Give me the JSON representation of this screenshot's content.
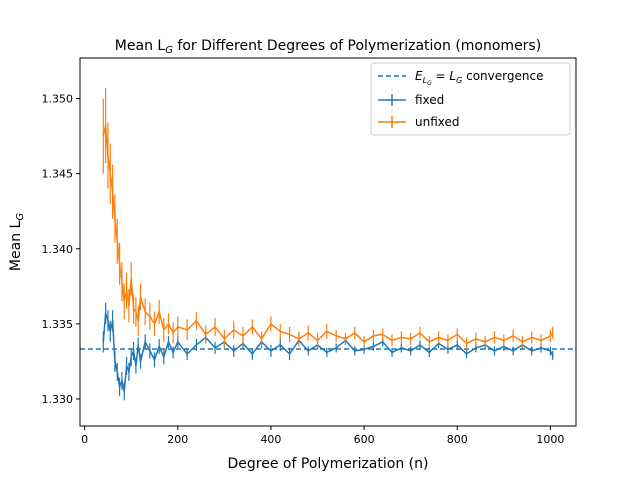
{
  "chart_data": {
    "type": "line",
    "title": "Mean L_G for Different Degrees of Polymerization (monomers)",
    "xlabel": "Degree of Polymerization (n)",
    "ylabel": "Mean L_G",
    "xlim": [
      -10,
      1055
    ],
    "ylim": [
      1.3282,
      1.3527
    ],
    "xticks": [
      0,
      200,
      400,
      600,
      800,
      1000
    ],
    "yticks": [
      1.33,
      1.335,
      1.34,
      1.345,
      1.35
    ],
    "xtick_labels": [
      "0",
      "200",
      "400",
      "600",
      "800",
      "1000"
    ],
    "ytick_labels": [
      "1.330",
      "1.335",
      "1.340",
      "1.345",
      "1.350"
    ],
    "legend_position": "top-right",
    "reference_line": {
      "label": "E_LG = L_G convergence",
      "y": 1.33333,
      "color": "#1f77b4",
      "style": "dashed"
    },
    "series": [
      {
        "name": "fixed",
        "color": "#1f77b4",
        "x": [
          40,
          45,
          50,
          55,
          60,
          65,
          70,
          75,
          80,
          85,
          90,
          95,
          100,
          105,
          110,
          115,
          120,
          130,
          140,
          150,
          160,
          170,
          180,
          190,
          200,
          220,
          240,
          260,
          280,
          300,
          320,
          340,
          360,
          380,
          400,
          420,
          440,
          460,
          480,
          500,
          520,
          540,
          560,
          580,
          600,
          620,
          640,
          660,
          680,
          700,
          720,
          740,
          760,
          780,
          800,
          820,
          840,
          860,
          880,
          900,
          920,
          940,
          960,
          980,
          1000,
          1005
        ],
        "y": [
          1.3338,
          1.3357,
          1.3352,
          1.3345,
          1.3352,
          1.3325,
          1.3318,
          1.3308,
          1.3312,
          1.3305,
          1.3322,
          1.3318,
          1.3328,
          1.3332,
          1.3322,
          1.3336,
          1.3325,
          1.3338,
          1.3332,
          1.3326,
          1.3335,
          1.3328,
          1.3338,
          1.3331,
          1.3338,
          1.333,
          1.3336,
          1.3341,
          1.3334,
          1.3338,
          1.3332,
          1.3337,
          1.333,
          1.3338,
          1.3332,
          1.3336,
          1.333,
          1.3339,
          1.3332,
          1.3336,
          1.3331,
          1.3334,
          1.3339,
          1.3332,
          1.3333,
          1.3335,
          1.3338,
          1.3331,
          1.3334,
          1.3332,
          1.3336,
          1.3331,
          1.3337,
          1.3333,
          1.3336,
          1.333,
          1.3334,
          1.3336,
          1.3332,
          1.3335,
          1.3332,
          1.3336,
          1.3332,
          1.3334,
          1.3332,
          1.3329
        ],
        "err": [
          0.0007,
          0.0007,
          0.0007,
          0.0007,
          0.0007,
          0.0007,
          0.0006,
          0.0006,
          0.0006,
          0.0006,
          0.0006,
          0.0006,
          0.0006,
          0.0006,
          0.0005,
          0.0005,
          0.0005,
          0.0005,
          0.0005,
          0.0005,
          0.0005,
          0.0005,
          0.0004,
          0.0004,
          0.0004,
          0.0004,
          0.0004,
          0.0004,
          0.0004,
          0.0004,
          0.0004,
          0.0004,
          0.0004,
          0.0004,
          0.0004,
          0.0004,
          0.0004,
          0.0004,
          0.0003,
          0.0003,
          0.0003,
          0.0003,
          0.0003,
          0.0003,
          0.0003,
          0.0003,
          0.0003,
          0.0003,
          0.0003,
          0.0003,
          0.0003,
          0.0003,
          0.0003,
          0.0003,
          0.0003,
          0.0003,
          0.0003,
          0.0003,
          0.0003,
          0.0003,
          0.0003,
          0.0003,
          0.0003,
          0.0003,
          0.0003,
          0.0003
        ]
      },
      {
        "name": "unfixed",
        "color": "#ff7f0e",
        "x": [
          40,
          45,
          50,
          55,
          60,
          65,
          70,
          75,
          80,
          85,
          90,
          95,
          100,
          105,
          110,
          115,
          120,
          130,
          140,
          150,
          160,
          170,
          180,
          190,
          200,
          220,
          240,
          260,
          280,
          300,
          320,
          340,
          360,
          380,
          400,
          420,
          440,
          460,
          480,
          500,
          520,
          540,
          560,
          580,
          600,
          620,
          640,
          660,
          680,
          700,
          720,
          740,
          760,
          780,
          800,
          820,
          840,
          860,
          880,
          900,
          920,
          940,
          960,
          980,
          1000,
          1005
        ],
        "y": [
          1.3475,
          1.3482,
          1.3462,
          1.345,
          1.3438,
          1.342,
          1.3405,
          1.339,
          1.3378,
          1.3365,
          1.3372,
          1.3362,
          1.338,
          1.336,
          1.3358,
          1.3352,
          1.3368,
          1.3358,
          1.3355,
          1.335,
          1.3358,
          1.3346,
          1.335,
          1.3344,
          1.3348,
          1.3346,
          1.3352,
          1.3343,
          1.3348,
          1.334,
          1.3346,
          1.3342,
          1.3348,
          1.334,
          1.335,
          1.3345,
          1.3343,
          1.334,
          1.3344,
          1.3339,
          1.3345,
          1.3342,
          1.334,
          1.3344,
          1.3338,
          1.3342,
          1.3343,
          1.3339,
          1.3341,
          1.334,
          1.3344,
          1.3338,
          1.3341,
          1.3339,
          1.3343,
          1.3337,
          1.334,
          1.3338,
          1.3341,
          1.3339,
          1.3342,
          1.3338,
          1.3341,
          1.3339,
          1.3342,
          1.3344
        ],
        "err": [
          0.0025,
          0.0025,
          0.0022,
          0.002,
          0.0018,
          0.0016,
          0.0015,
          0.0014,
          0.0013,
          0.0012,
          0.0012,
          0.0011,
          0.0011,
          0.001,
          0.001,
          0.001,
          0.0009,
          0.0009,
          0.0009,
          0.0008,
          0.0008,
          0.0008,
          0.0007,
          0.0007,
          0.0007,
          0.0007,
          0.0006,
          0.0006,
          0.0006,
          0.0006,
          0.0006,
          0.0006,
          0.0005,
          0.0005,
          0.0005,
          0.0005,
          0.0005,
          0.0005,
          0.0005,
          0.0005,
          0.0005,
          0.0004,
          0.0004,
          0.0004,
          0.0004,
          0.0004,
          0.0004,
          0.0004,
          0.0004,
          0.0004,
          0.0004,
          0.0004,
          0.0004,
          0.0004,
          0.0004,
          0.0004,
          0.0004,
          0.0004,
          0.0004,
          0.0004,
          0.0004,
          0.0004,
          0.0004,
          0.0004,
          0.0004,
          0.0004
        ]
      }
    ]
  }
}
